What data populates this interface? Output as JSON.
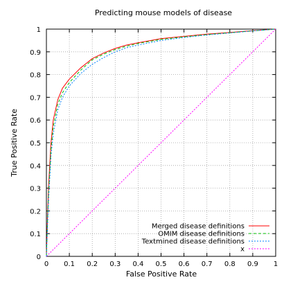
{
  "chart_data": {
    "type": "line",
    "title": "Predicting mouse models of disease",
    "xlabel": "False Positive Rate",
    "ylabel": "True Positive Rate",
    "xlim": [
      0,
      1
    ],
    "ylim": [
      0,
      1
    ],
    "xticks": [
      "0",
      "0.1",
      "0.2",
      "0.3",
      "0.4",
      "0.5",
      "0.6",
      "0.7",
      "0.8",
      "0.9",
      "1"
    ],
    "yticks": [
      "0",
      "0.1",
      "0.2",
      "0.3",
      "0.4",
      "0.5",
      "0.6",
      "0.7",
      "0.8",
      "0.9",
      "1"
    ],
    "grid": true,
    "legend_position": "bottom-right",
    "series": [
      {
        "name": "Merged disease definitions",
        "color": "#ff0000",
        "dash": "solid",
        "x": [
          0,
          0.005,
          0.01,
          0.02,
          0.03,
          0.05,
          0.07,
          0.1,
          0.15,
          0.2,
          0.25,
          0.3,
          0.35,
          0.4,
          0.5,
          0.6,
          0.7,
          0.8,
          0.9,
          1
        ],
        "y": [
          0,
          0.18,
          0.32,
          0.5,
          0.6,
          0.69,
          0.74,
          0.78,
          0.83,
          0.87,
          0.895,
          0.915,
          0.93,
          0.94,
          0.958,
          0.968,
          0.978,
          0.985,
          0.993,
          1
        ]
      },
      {
        "name": "OMIM disease definitions",
        "color": "#00c000",
        "dash": "dashed",
        "x": [
          0,
          0.005,
          0.01,
          0.02,
          0.03,
          0.05,
          0.07,
          0.1,
          0.15,
          0.2,
          0.25,
          0.3,
          0.35,
          0.4,
          0.5,
          0.6,
          0.7,
          0.8,
          0.9,
          1
        ],
        "y": [
          0,
          0.16,
          0.29,
          0.47,
          0.57,
          0.67,
          0.72,
          0.765,
          0.82,
          0.865,
          0.89,
          0.91,
          0.925,
          0.937,
          0.955,
          0.966,
          0.976,
          0.984,
          0.992,
          1
        ]
      },
      {
        "name": "Textmined disease definitions",
        "color": "#0080ff",
        "dash": "dotted",
        "x": [
          0,
          0.005,
          0.01,
          0.02,
          0.03,
          0.05,
          0.07,
          0.1,
          0.15,
          0.2,
          0.25,
          0.3,
          0.35,
          0.4,
          0.5,
          0.6,
          0.7,
          0.8,
          0.9,
          1
        ],
        "y": [
          0,
          0.14,
          0.26,
          0.44,
          0.54,
          0.645,
          0.7,
          0.75,
          0.805,
          0.845,
          0.875,
          0.9,
          0.918,
          0.93,
          0.95,
          0.963,
          0.974,
          0.983,
          0.992,
          1
        ]
      },
      {
        "name": "x",
        "color": "#ff00ff",
        "dash": "dotted",
        "x": [
          0,
          1
        ],
        "y": [
          0,
          1
        ]
      }
    ]
  }
}
